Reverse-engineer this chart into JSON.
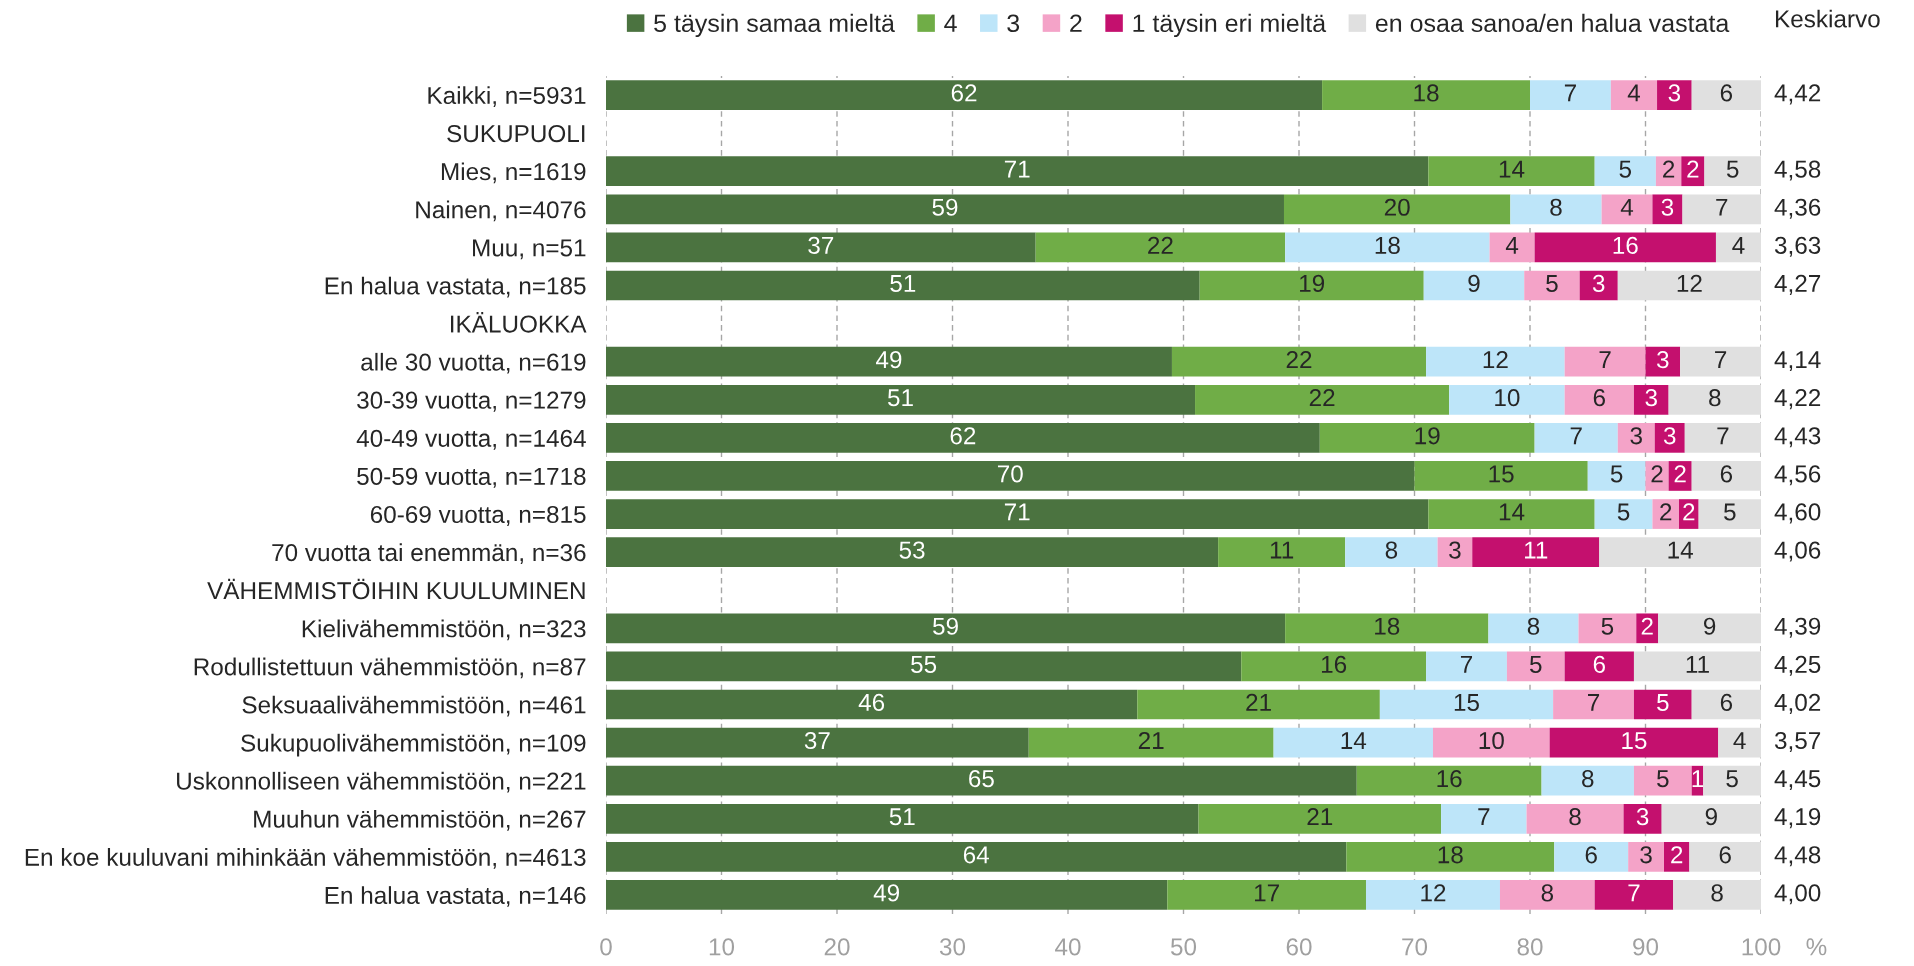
{
  "chart_data": {
    "type": "bar",
    "orientation": "horizontal",
    "stacked": true,
    "categories": [
      "Kaikki, n=5931",
      "SUKUPUOLI",
      "Mies, n=1619",
      "Nainen, n=4076",
      "Muu, n=51",
      "En halua vastata, n=185",
      "IKÄLUOKKA",
      "alle 30 vuotta, n=619",
      "30-39 vuotta, n=1279",
      "40-49 vuotta, n=1464",
      "50-59 vuotta, n=1718",
      "60-69 vuotta, n=815",
      "70 vuotta tai enemmän, n=36",
      "VÄHEMMISTÖIHIN KUULUMINEN",
      "Kielivähemmistöön, n=323",
      "Rodullistettuun vähemmistöön, n=87",
      "Seksuaalivähemmistöön, n=461",
      "Sukupuolivähemmistöön, n=109",
      "Uskonnolliseen vähemmistöön, n=221",
      "Muuhun vähemmistöön, n=267",
      "En koe kuuluvani mihinkään vähemmistöön, n=4613",
      "En halua vastata, n=146"
    ],
    "series": [
      {
        "name": "5 täysin samaa mieltä",
        "color": "#4b7340",
        "values": [
          62,
          null,
          71.2,
          58.7,
          37.2,
          51.4,
          null,
          49,
          51,
          61.8,
          70,
          71.2,
          53,
          null,
          58.8,
          55,
          46,
          36.6,
          65,
          51.3,
          64.1,
          48.6
        ],
        "value_labels": [
          "62",
          null,
          "71",
          "59",
          "37",
          "51",
          null,
          "49",
          "51",
          "62",
          "70",
          "71",
          "53",
          null,
          "59",
          "55",
          "46",
          "37",
          "65",
          "51",
          "64",
          "49"
        ]
      },
      {
        "name": "4",
        "color": "#70ad47",
        "values": [
          18,
          null,
          14.4,
          19.6,
          21.6,
          19.4,
          null,
          22,
          22,
          18.6,
          15,
          14.4,
          11,
          null,
          17.6,
          16,
          21,
          21.2,
          16,
          21.0,
          18.0,
          17.2
        ],
        "value_labels": [
          "18",
          null,
          "14",
          "20",
          "22",
          "19",
          null,
          "22",
          "22",
          "19",
          "15",
          "14",
          "11",
          null,
          "18",
          "16",
          "21",
          "21",
          "16",
          "21",
          "18",
          "17"
        ]
      },
      {
        "name": "3",
        "color": "#bde5f9",
        "values": [
          7,
          null,
          5.3,
          7.9,
          17.7,
          8.7,
          null,
          12,
          10,
          7.2,
          5,
          5.0,
          8,
          null,
          7.8,
          7,
          15,
          13.8,
          8,
          7.4,
          6.4,
          11.6
        ],
        "value_labels": [
          "7",
          null,
          "5",
          "8",
          "18",
          "9",
          null,
          "12",
          "10",
          "7",
          "5",
          "5",
          "8",
          null,
          "8",
          "7",
          "15",
          "14",
          "8",
          "7",
          "6",
          "12"
        ]
      },
      {
        "name": "2",
        "color": "#f4a3c8",
        "values": [
          4,
          null,
          2.2,
          4.4,
          3.9,
          4.8,
          null,
          7,
          6,
          3.2,
          2,
          2.3,
          3,
          null,
          5.0,
          5,
          7,
          10.1,
          5,
          8.4,
          3.1,
          8.2
        ],
        "value_labels": [
          "4",
          null,
          "2",
          "4",
          "4",
          "5",
          null,
          "7",
          "6",
          "3",
          "2",
          "2",
          "3",
          null,
          "5",
          "5",
          "7",
          "10",
          "5",
          "8",
          "3",
          "8"
        ]
      },
      {
        "name": "1 täysin eri mieltä",
        "color": "#c4106e",
        "values": [
          3,
          null,
          2.0,
          2.6,
          15.7,
          3.3,
          null,
          3,
          3,
          2.6,
          2,
          1.7,
          11,
          null,
          1.9,
          6,
          5,
          14.6,
          1,
          3.3,
          2.2,
          6.8
        ],
        "value_labels": [
          "3",
          null,
          "2",
          "3",
          "16",
          "3",
          null,
          "3",
          "3",
          "3",
          "2",
          "2",
          "11",
          null,
          "2",
          "6",
          "5",
          "15",
          "1",
          "3",
          "2",
          "7"
        ]
      },
      {
        "name": "en osaa sanoa/en halua vastata",
        "color": "#e0e0e0",
        "values": [
          6,
          null,
          4.9,
          6.8,
          3.9,
          12.4,
          null,
          7,
          8,
          6.6,
          6,
          5.4,
          14,
          null,
          8.9,
          11,
          6,
          3.7,
          5,
          8.6,
          6.2,
          7.6
        ],
        "value_labels": [
          "6",
          null,
          "5",
          "7",
          "4",
          "12",
          null,
          "7",
          "8",
          "7",
          "6",
          "5",
          "14",
          null,
          "9",
          "11",
          "6",
          "4",
          "5",
          "9",
          "6",
          "8"
        ]
      }
    ],
    "xlim": [
      0,
      100
    ],
    "xticks": [
      0,
      10,
      20,
      30,
      40,
      50,
      60,
      70,
      80,
      90,
      100
    ],
    "xlabel": "%",
    "grid": "x",
    "legend": "top",
    "annotations": [
      "Keskiarvo",
      "4,42",
      "4,58",
      "4,36",
      "3,63",
      "4,27",
      "4,14",
      "4,22",
      "4,43",
      "4,56",
      "4,60",
      "4,06",
      "4,39",
      "4,25",
      "4,02",
      "3,57",
      "4,45",
      "4,19",
      "4,48",
      "4,00"
    ]
  }
}
